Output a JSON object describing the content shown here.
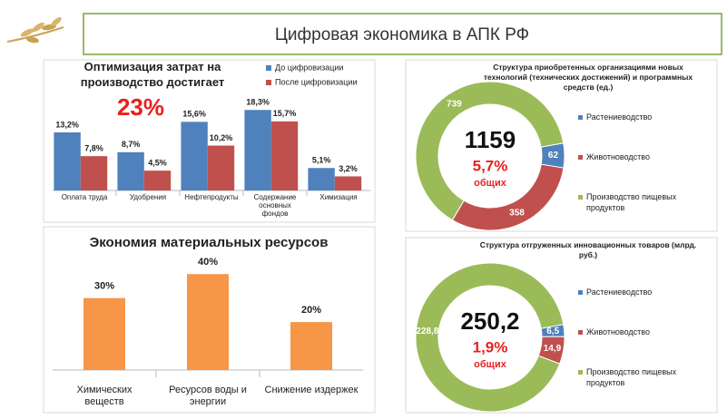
{
  "header": {
    "title": "Цифровая экономика в АПК РФ"
  },
  "chart_data": [
    {
      "type": "grouped-bar",
      "title": "Оптимизация затрат на производство достигает",
      "annotation": "23%",
      "categories": [
        "Оплата труда",
        "Удобрения",
        "Нефтепродукты",
        "Содержание основных фондов",
        "Химизация"
      ],
      "series": [
        {
          "name": "До цифровизации",
          "color": "#4f81bd",
          "values": [
            13.2,
            8.7,
            15.6,
            18.3,
            5.1
          ],
          "value_labels": [
            "13,2%",
            "8,7%",
            "15,6%",
            "18,3%",
            "5,1%"
          ]
        },
        {
          "name": "После цифровизации",
          "color": "#c0504d",
          "values": [
            7.8,
            4.5,
            10.2,
            15.7,
            3.2
          ],
          "value_labels": [
            "7,8%",
            "4,5%",
            "10,2%",
            "15,7%",
            "3,2%"
          ]
        }
      ],
      "ylim": [
        0,
        20
      ]
    },
    {
      "type": "bar",
      "title": "Экономия материальных ресурсов",
      "categories": [
        "Химических веществ",
        "Ресурсов воды и энергии",
        "Снижение издержек"
      ],
      "values": [
        30,
        40,
        20
      ],
      "value_labels": [
        "30%",
        "40%",
        "20%"
      ],
      "color": "#f79646",
      "ylim": [
        0,
        45
      ]
    },
    {
      "type": "donut",
      "title": "Структура приобретенных организациями новых технологий (технических достижений) и программных средств (ед.)",
      "categories": [
        "Растениеводство",
        "Животноводство",
        "Производство пищевых продуктов"
      ],
      "values": [
        62,
        358,
        739
      ],
      "colors": [
        "#4f81bd",
        "#c0504d",
        "#9bbb59"
      ],
      "center_labels": [
        "1159",
        "5,7%",
        "общих"
      ]
    },
    {
      "type": "donut",
      "title": "Структура отгруженных инновационных товаров (млрд. руб.)",
      "categories": [
        "Растениеводство",
        "Животноводство",
        "Производство пищевых продуктов"
      ],
      "values": [
        6.5,
        14.9,
        228.8
      ],
      "value_labels": [
        "6,5",
        "14,9",
        "228,8"
      ],
      "colors": [
        "#4f81bd",
        "#c0504d",
        "#9bbb59"
      ],
      "center_labels": [
        "250,2",
        "1,9%",
        "общих"
      ]
    }
  ]
}
